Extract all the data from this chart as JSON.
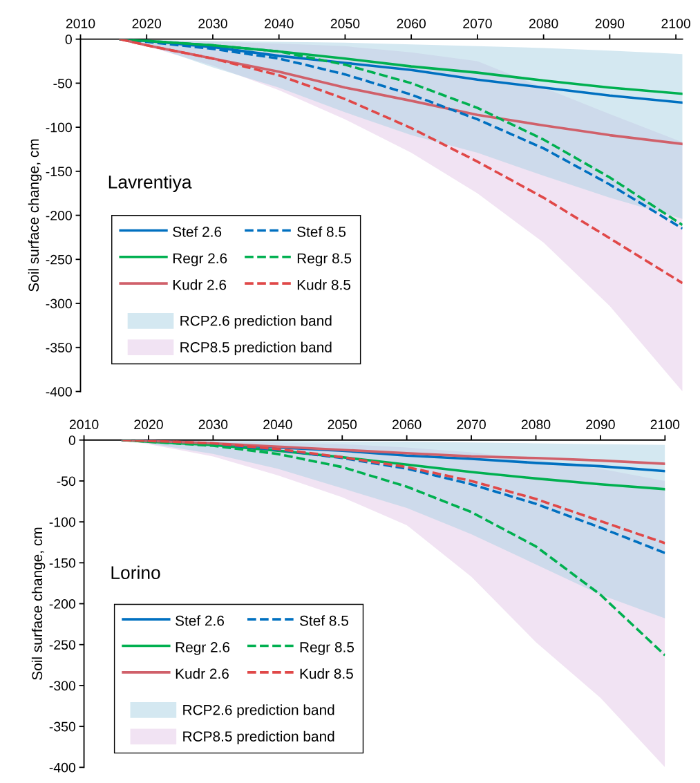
{
  "chart_data": [
    {
      "type": "line",
      "title": "Lavrentiya",
      "ylabel": "Soil surface change, cm",
      "xlim": [
        2010,
        2101
      ],
      "xticks": [
        2010,
        2020,
        2030,
        2040,
        2050,
        2060,
        2070,
        2080,
        2090,
        2100
      ],
      "ylim": [
        -400,
        0
      ],
      "yticks": [
        0,
        -50,
        -100,
        -150,
        -200,
        -250,
        -300,
        -350,
        -400
      ],
      "legend": "bottom left",
      "x": [
        2016,
        2020,
        2030,
        2040,
        2050,
        2060,
        2070,
        2080,
        2090,
        2101
      ],
      "series": [
        {
          "name": "Stef 2.6",
          "type": "line",
          "color": "#0070c0",
          "line_style": "solid",
          "values": [
            0,
            -2,
            -9,
            -19,
            -27,
            -35,
            -46,
            -55,
            -64,
            -72
          ]
        },
        {
          "name": "Regr 2.6",
          "type": "line",
          "color": "#00b050",
          "line_style": "solid",
          "values": [
            0,
            -2,
            -7,
            -14,
            -22,
            -31,
            -38,
            -47,
            -55,
            -62
          ]
        },
        {
          "name": "Kudr 2.6",
          "type": "line",
          "color": "#d0606a",
          "line_style": "solid",
          "values": [
            0,
            -7,
            -22,
            -37,
            -55,
            -70,
            -86,
            -98,
            -109,
            -119
          ]
        },
        {
          "name": "RCP2.6 prediction band",
          "type": "line",
          "color": "#a9d1e3",
          "values": [
            null,
            null,
            null,
            null,
            null,
            null,
            null,
            null,
            null,
            null
          ],
          "upper": [
            0,
            -1,
            -2,
            -3,
            -4,
            -6,
            -8,
            -10,
            -13,
            -17
          ],
          "lower": [
            0,
            -6,
            -32,
            -55,
            -83,
            -109,
            -129,
            -155,
            -180,
            -204
          ]
        },
        {
          "name": "Stef 8.5",
          "type": "line",
          "color": "#0070c0",
          "line_style": "dashed",
          "values": [
            0,
            -3,
            -11,
            -22,
            -40,
            -63,
            -91,
            -124,
            -165,
            -215
          ]
        },
        {
          "name": "Regr 8.5",
          "type": "line",
          "color": "#00b050",
          "line_style": "dashed",
          "values": [
            0,
            -2,
            -7,
            -14,
            -29,
            -50,
            -78,
            -114,
            -157,
            -211
          ]
        },
        {
          "name": "Kudr 8.5",
          "type": "line",
          "color": "#e04848",
          "line_style": "dashed",
          "values": [
            0,
            -7,
            -22,
            -41,
            -68,
            -101,
            -139,
            -180,
            -226,
            -277
          ]
        },
        {
          "name": "RCP8.5 prediction band",
          "type": "line",
          "color": "#f1e3f3",
          "values": [
            null,
            null,
            null,
            null,
            null,
            null,
            null,
            null,
            null,
            null
          ],
          "upper": [
            0,
            -1,
            -3,
            -5,
            -8,
            -15,
            -25,
            -55,
            -85,
            -117
          ],
          "lower": [
            0,
            -8,
            -30,
            -58,
            -91,
            -129,
            -175,
            -231,
            -303,
            -400
          ]
        }
      ]
    },
    {
      "type": "line",
      "title": "Lorino",
      "ylabel": "Soil surface change, cm",
      "xlim": [
        2010,
        2100
      ],
      "xticks": [
        2010,
        2020,
        2030,
        2040,
        2050,
        2060,
        2070,
        2080,
        2090,
        2100
      ],
      "ylim": [
        -400,
        0
      ],
      "yticks": [
        0,
        -50,
        -100,
        -150,
        -200,
        -250,
        -300,
        -350,
        -400
      ],
      "legend": "bottom left",
      "x": [
        2016,
        2020,
        2030,
        2040,
        2050,
        2060,
        2070,
        2080,
        2090,
        2100
      ],
      "series": [
        {
          "name": "Stef 2.6",
          "type": "line",
          "color": "#0070c0",
          "line_style": "solid",
          "values": [
            0,
            -1,
            -5,
            -9,
            -13,
            -19,
            -23,
            -28,
            -32,
            -38
          ]
        },
        {
          "name": "Regr 2.6",
          "type": "line",
          "color": "#00b050",
          "line_style": "solid",
          "values": [
            0,
            -2,
            -6,
            -13,
            -21,
            -30,
            -39,
            -47,
            -54,
            -60
          ]
        },
        {
          "name": "Kudr 2.6",
          "type": "line",
          "color": "#d0606a",
          "line_style": "solid",
          "values": [
            0,
            -1,
            -4,
            -8,
            -12,
            -16,
            -20,
            -22,
            -25,
            -29
          ]
        },
        {
          "name": "RCP2.6 prediction band",
          "type": "line",
          "color": "#a9d1e3",
          "values": [
            null,
            null,
            null,
            null,
            null,
            null,
            null,
            null,
            null,
            null
          ],
          "upper": [
            0,
            0,
            -1,
            -1,
            -2,
            -2,
            -3,
            -4,
            -5,
            -6
          ],
          "lower": [
            0,
            -4,
            -17,
            -35,
            -59,
            -83,
            -115,
            -152,
            -189,
            -218
          ]
        },
        {
          "name": "Stef 8.5",
          "type": "line",
          "color": "#0070c0",
          "line_style": "dashed",
          "values": [
            0,
            -1,
            -5,
            -12,
            -22,
            -35,
            -54,
            -78,
            -107,
            -138
          ]
        },
        {
          "name": "Regr 8.5",
          "type": "line",
          "color": "#00b050",
          "line_style": "dashed",
          "values": [
            0,
            -2,
            -7,
            -17,
            -33,
            -57,
            -88,
            -130,
            -189,
            -263
          ]
        },
        {
          "name": "Kudr 8.5",
          "type": "line",
          "color": "#e04848",
          "line_style": "dashed",
          "values": [
            0,
            -1,
            -4,
            -11,
            -21,
            -33,
            -50,
            -72,
            -99,
            -126
          ]
        },
        {
          "name": "RCP8.5 prediction band",
          "type": "line",
          "color": "#f1e3f3",
          "values": [
            null,
            null,
            null,
            null,
            null,
            null,
            null,
            null,
            null,
            null
          ],
          "upper": [
            0,
            0,
            -2,
            -3,
            -5,
            -9,
            -15,
            -24,
            -35,
            -50
          ],
          "lower": [
            0,
            -5,
            -20,
            -43,
            -70,
            -104,
            -167,
            -247,
            -315,
            -400
          ]
        }
      ]
    }
  ]
}
